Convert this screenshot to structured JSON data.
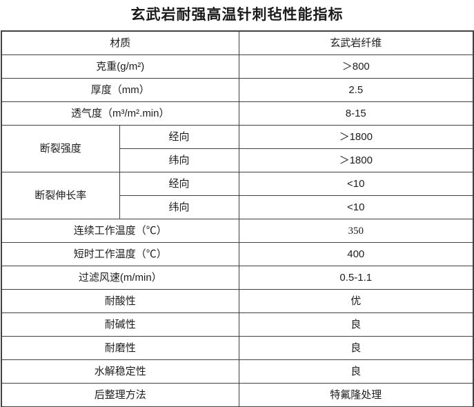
{
  "title": "玄武岩耐强高温针刺毡性能指标",
  "table": {
    "rows": [
      {
        "label": "材质",
        "value": "玄武岩纤维"
      },
      {
        "label": "克重(g/m²)",
        "value": "＞800"
      },
      {
        "label": "厚度（mm）",
        "value": "2.5"
      },
      {
        "label": "透气度（m³/m².min）",
        "value": "8-15"
      },
      {
        "group": "断裂强度",
        "group_rowspan": 2,
        "label": "经向",
        "value": "＞1800"
      },
      {
        "in_group": true,
        "label": "纬向",
        "value": "＞1800"
      },
      {
        "group": "断裂伸长率",
        "group_rowspan": 2,
        "label": "经向",
        "value": "<10"
      },
      {
        "in_group": true,
        "label": "纬向",
        "value": "<10"
      },
      {
        "label": "连续工作温度（℃）",
        "value": "350",
        "value_serif": true
      },
      {
        "label": "短时工作温度（℃）",
        "value": "400"
      },
      {
        "label": "过滤风速(m/min）",
        "value": "0.5-1.1"
      },
      {
        "label": "耐酸性",
        "value": "优"
      },
      {
        "label": "耐碱性",
        "value": "良"
      },
      {
        "label": "耐磨性",
        "value": "良"
      },
      {
        "label": "水解稳定性",
        "value": "良"
      },
      {
        "label": "后整理方法",
        "value": "特氟隆处理"
      }
    ]
  }
}
